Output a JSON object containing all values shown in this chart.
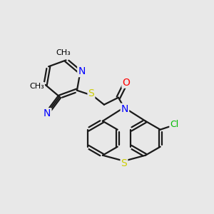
{
  "bg_color": "#e8e8e8",
  "bond_color": "#1a1a1a",
  "atom_colors": {
    "N": "#0000ff",
    "S": "#cccc00",
    "O": "#ff0000",
    "Cl": "#00bb00",
    "C": "#000000"
  },
  "figsize": [
    3.0,
    3.0
  ],
  "dpi": 100
}
